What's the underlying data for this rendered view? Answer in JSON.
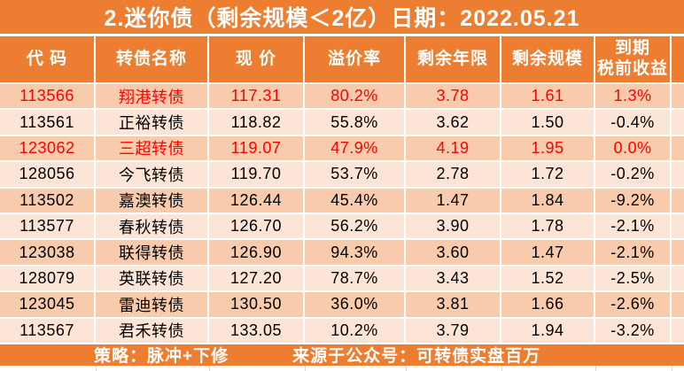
{
  "title": "2.迷你债（剩余规模＜2亿）日期：2022.05.21",
  "colors": {
    "accent": "#ED7D31",
    "row_dark": "#F8CBAD",
    "row_light": "#FCE4D6",
    "highlight_text": "#FF0000",
    "text": "#000000",
    "header_text": "#FFFFFF"
  },
  "chart_data": {
    "type": "table",
    "title": "2.迷你债（剩余规模＜2亿）日期：2022.05.21",
    "date": "2022.05.21",
    "columns": [
      "代 码",
      "转债名称",
      "现 价",
      "溢价率",
      "剩余年限",
      "剩余规模",
      "到期\n税前收益"
    ],
    "rows": [
      {
        "code": "113566",
        "name": "翔港转债",
        "price": "117.31",
        "premium": "80.2%",
        "years": "3.78",
        "size": "1.61",
        "yield": "1.3%",
        "highlight": true
      },
      {
        "code": "113561",
        "name": "正裕转债",
        "price": "118.82",
        "premium": "55.8%",
        "years": "3.62",
        "size": "1.50",
        "yield": "-0.4%",
        "highlight": false
      },
      {
        "code": "123062",
        "name": "三超转债",
        "price": "119.07",
        "premium": "47.9%",
        "years": "4.19",
        "size": "1.95",
        "yield": "0.0%",
        "highlight": true
      },
      {
        "code": "128056",
        "name": "今飞转债",
        "price": "119.70",
        "premium": "53.7%",
        "years": "2.78",
        "size": "1.72",
        "yield": "-0.2%",
        "highlight": false
      },
      {
        "code": "113502",
        "name": "嘉澳转债",
        "price": "126.44",
        "premium": "45.4%",
        "years": "1.47",
        "size": "1.84",
        "yield": "-9.2%",
        "highlight": false
      },
      {
        "code": "113577",
        "name": "春秋转债",
        "price": "126.70",
        "premium": "56.2%",
        "years": "3.90",
        "size": "1.78",
        "yield": "-2.1%",
        "highlight": false
      },
      {
        "code": "123038",
        "name": "联得转债",
        "price": "126.90",
        "premium": "94.3%",
        "years": "3.60",
        "size": "1.47",
        "yield": "-2.1%",
        "highlight": false
      },
      {
        "code": "128079",
        "name": "英联转债",
        "price": "127.20",
        "premium": "78.7%",
        "years": "3.43",
        "size": "1.52",
        "yield": "-2.5%",
        "highlight": false
      },
      {
        "code": "123045",
        "name": "雷迪转债",
        "price": "130.50",
        "premium": "36.0%",
        "years": "3.81",
        "size": "1.66",
        "yield": "-2.6%",
        "highlight": false
      },
      {
        "code": "113567",
        "name": "君禾转债",
        "price": "133.05",
        "premium": "10.2%",
        "years": "3.79",
        "size": "1.94",
        "yield": "-3.2%",
        "highlight": false
      }
    ]
  },
  "footer": {
    "strategy": "策略：脉冲+下修",
    "source": "来源于公众号：可转债实盘百万"
  }
}
